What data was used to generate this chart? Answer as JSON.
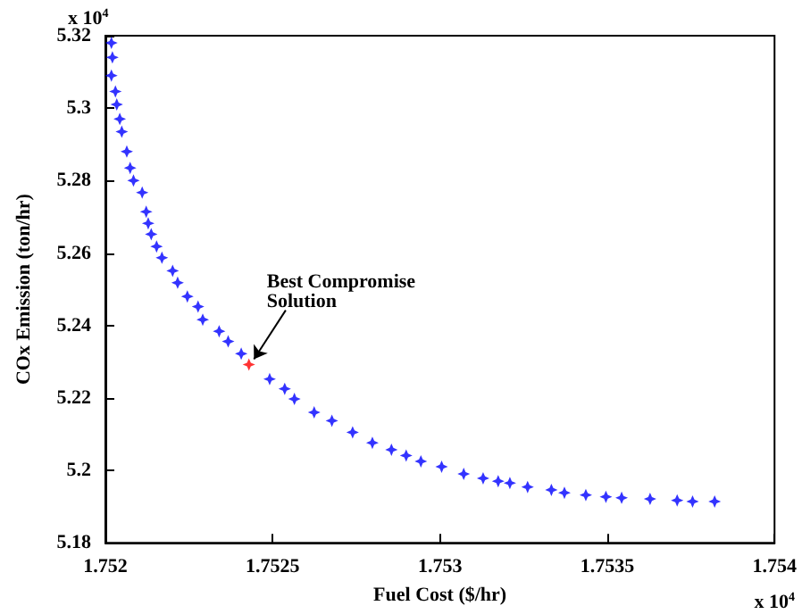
{
  "chart_data": {
    "type": "scatter",
    "xlabel": "Fuel Cost ($/hr)",
    "ylabel": "COx Emission (ton/hr)",
    "annotations": [
      {
        "text": "Best Compromise Solution",
        "x": 1.752429,
        "y": 5.2292
      },
      "x 10$^{4}$",
      "x 10$^{4}$"
    ],
    "series": [
      {
        "color": "#0000ff",
        "x": [
          1.752018,
          1.752021,
          1.752018,
          1.75203,
          1.752034,
          1.752043,
          1.752049,
          1.752064,
          1.752074,
          1.752084,
          1.75211,
          1.752122,
          1.752128,
          1.752137,
          1.752153,
          1.752169,
          1.752201,
          1.752216,
          1.752245,
          1.752277,
          1.752291,
          1.75234,
          1.752367,
          1.752406,
          1.752491,
          1.752536,
          1.752565,
          1.752624,
          1.752677,
          1.752739,
          1.752798,
          1.752855,
          1.752899,
          1.752943,
          1.753005,
          1.753071,
          1.753129,
          1.753174,
          1.753209,
          1.753262,
          1.753333,
          1.753372,
          1.753436,
          1.753496,
          1.753543,
          1.753628,
          1.753709,
          1.753755,
          1.753821
        ],
        "values": [
          5.318,
          5.314,
          5.309,
          5.3046,
          5.301,
          5.297,
          5.2935,
          5.288,
          5.2835,
          5.28,
          5.2767,
          5.2714,
          5.2682,
          5.2652,
          5.2618,
          5.2587,
          5.2551,
          5.2518,
          5.248,
          5.2452,
          5.2416,
          5.2384,
          5.2356,
          5.2322,
          5.2252,
          5.2225,
          5.2197,
          5.216,
          5.2137,
          5.2105,
          5.2076,
          5.2057,
          5.2041,
          5.2025,
          5.201,
          5.199,
          5.1978,
          5.197,
          5.1965,
          5.1954,
          5.1946,
          5.1938,
          5.1932,
          5.1927,
          5.1924,
          5.1921,
          5.1917,
          5.1914,
          5.1914
        ]
      },
      {
        "color": "#ff0000",
        "x": [
          1.752429
        ],
        "values": [
          5.2292
        ]
      }
    ],
    "xlim": [
      1.752,
      1.754
    ],
    "xticks": [
      1.752,
      1.7525,
      1.753,
      1.7535,
      1.754
    ],
    "ylim": [
      5.18,
      5.32
    ],
    "yticks": [
      5.18,
      5.2,
      5.22,
      5.24,
      5.26,
      5.28,
      5.3,
      5.32
    ],
    "grid": false,
    "marker": "star"
  }
}
